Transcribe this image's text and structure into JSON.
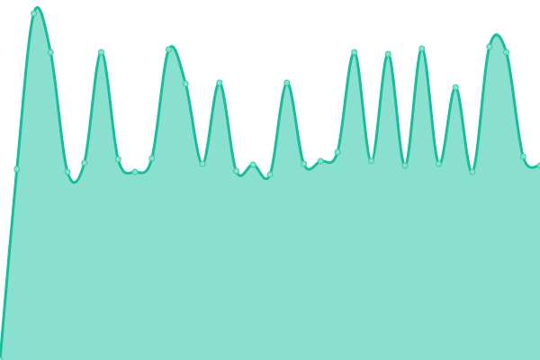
{
  "chart_data": {
    "type": "area",
    "title": "",
    "xlabel": "",
    "ylabel": "",
    "x": [
      0,
      1,
      2,
      3,
      4,
      5,
      6,
      7,
      8,
      9,
      10,
      11,
      12,
      13,
      14,
      15,
      16,
      17,
      18,
      19,
      20,
      21,
      22,
      23,
      24,
      25,
      26,
      27,
      28,
      29,
      30,
      31,
      32
    ],
    "values": [
      0,
      212,
      385,
      342,
      209,
      219,
      342,
      223,
      209,
      224,
      345,
      307,
      218,
      308,
      210,
      217,
      206,
      308,
      218,
      221,
      231,
      342,
      221,
      340,
      216,
      346,
      218,
      303,
      209,
      348,
      342,
      226,
      216
    ],
    "ylim": [
      0,
      400
    ],
    "grid": false,
    "axes_visible": false,
    "curve": "smooth",
    "markers": true,
    "colors": {
      "fill": "#8ae0cf",
      "line": "#1abc9c",
      "marker_fill": "#8ae0cf",
      "marker_stroke": "#3cc9a8"
    }
  }
}
